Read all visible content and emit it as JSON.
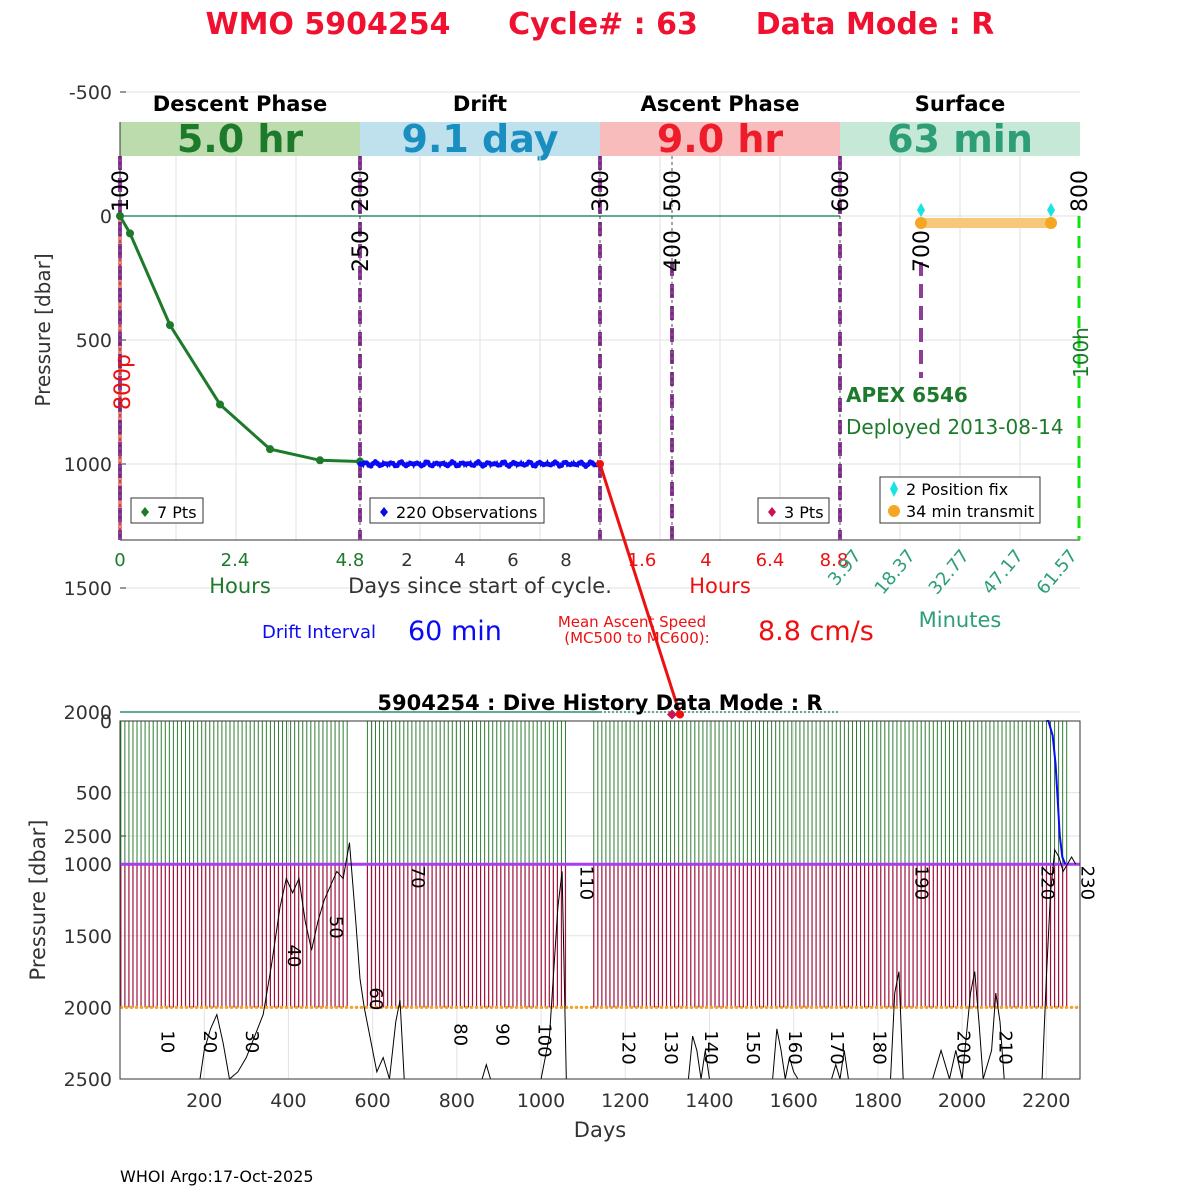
{
  "title": {
    "wmo": "WMO 5904254",
    "cycle": "Cycle# : 63",
    "mode": "Data Mode : R",
    "color": "#f0102f"
  },
  "top_chart": {
    "ylabel": "Pressure [dbar]",
    "y_ticks": [
      "-500",
      "0",
      "500",
      "1000",
      "1500",
      "2000",
      "2500"
    ],
    "phases": [
      {
        "name": "Descent Phase",
        "duration": "5.0 hr",
        "bg": "#bcdcae",
        "fg": "#1d7a2a"
      },
      {
        "name": "Drift",
        "duration": "9.1 day",
        "bg": "#bfe1ed",
        "fg": "#1a8fbf"
      },
      {
        "name": "Ascent Phase",
        "duration": "9.0 hr",
        "bg": "#f8bcbc",
        "fg": "#ee1c2a"
      },
      {
        "name": "Surface",
        "duration": "63 min",
        "bg": "#c6e8d6",
        "fg": "#2e9e78"
      }
    ],
    "mc_labels": [
      {
        "text": "100",
        "pos": 0,
        "top": true
      },
      {
        "text": "200",
        "pos": 1,
        "top": true
      },
      {
        "text": "250",
        "pos": 1,
        "top": false
      },
      {
        "text": "300",
        "pos": 2,
        "top": true
      },
      {
        "text": "500",
        "pos": 3,
        "top": true
      },
      {
        "text": "400",
        "pos": 3,
        "top": false
      },
      {
        "text": "600",
        "pos": 4,
        "top": true
      },
      {
        "text": "700",
        "pos": 5,
        "top": false
      },
      {
        "text": "800",
        "pos": 6,
        "top": true
      }
    ],
    "side_labels": {
      "left": "800p",
      "right": "100h"
    },
    "descent": {
      "axis_label": "Hours",
      "ticks": [
        "0",
        "2.4",
        "4.8"
      ],
      "legend": "7 Pts",
      "points": [
        [
          0,
          0
        ],
        [
          0.2,
          70
        ],
        [
          1.0,
          440
        ],
        [
          2.0,
          760
        ],
        [
          3.0,
          940
        ],
        [
          4.0,
          985
        ],
        [
          4.8,
          990
        ]
      ]
    },
    "drift": {
      "axis_label": "Days since start of cycle.",
      "ticks": [
        "2",
        "4",
        "6",
        "8"
      ],
      "legend": "220 Observations",
      "pressure_mean": 1000
    },
    "ascent": {
      "axis_label": "Hours",
      "ticks": [
        "1.6",
        "4",
        "6.4",
        "8.8"
      ],
      "legend": "3 Pts",
      "points": [
        [
          0,
          1000
        ],
        [
          3.0,
          2010
        ],
        [
          3.0,
          2010
        ]
      ]
    },
    "surface": {
      "axis_label": "Minutes",
      "ticks": [
        "3.97",
        "18.37",
        "32.77",
        "47.17",
        "61.57"
      ],
      "legend_fix": "2 Position fix",
      "legend_transmit": "34 min transmit",
      "float_model": "APEX 6546",
      "deployed": "Deployed 2013-08-14"
    },
    "drift_interval_label": "Drift Interval",
    "drift_interval_value": "60 min",
    "ascent_speed_label_1": "Mean Ascent Speed",
    "ascent_speed_label_2": "(MC500 to MC600):",
    "ascent_speed_value": "8.8 cm/s"
  },
  "chart_data": {
    "type": "line",
    "title": "5904254 : Dive History      Data Mode : R",
    "xlabel": "Days",
    "ylabel": "Pressure [dbar]",
    "xlim": [
      0,
      2280
    ],
    "ylim": [
      0,
      2500
    ],
    "x_ticks": [
      "200",
      "400",
      "600",
      "800",
      "1000",
      "1200",
      "1400",
      "1600",
      "1800",
      "2000",
      "2200"
    ],
    "y_ticks": [
      "0",
      "500",
      "1000",
      "1500",
      "2000",
      "2500"
    ],
    "cycle_labels": [
      {
        "text": "10",
        "day": 80,
        "p": 2300
      },
      {
        "text": "20",
        "day": 180,
        "p": 2300
      },
      {
        "text": "30",
        "day": 280,
        "p": 2300
      },
      {
        "text": "40",
        "day": 380,
        "p": 1700
      },
      {
        "text": "50",
        "day": 480,
        "p": 1500
      },
      {
        "text": "60",
        "day": 575,
        "p": 2000
      },
      {
        "text": "70",
        "day": 675,
        "p": 1150
      },
      {
        "text": "80",
        "day": 775,
        "p": 2250
      },
      {
        "text": "90",
        "day": 875,
        "p": 2250
      },
      {
        "text": "100",
        "day": 975,
        "p": 2250
      },
      {
        "text": "110",
        "day": 1075,
        "p": 1150
      },
      {
        "text": "120",
        "day": 1175,
        "p": 2300
      },
      {
        "text": "130",
        "day": 1275,
        "p": 2300
      },
      {
        "text": "140",
        "day": 1370,
        "p": 2300
      },
      {
        "text": "150",
        "day": 1470,
        "p": 2300
      },
      {
        "text": "160",
        "day": 1570,
        "p": 2300
      },
      {
        "text": "170",
        "day": 1670,
        "p": 2300
      },
      {
        "text": "180",
        "day": 1770,
        "p": 2300
      },
      {
        "text": "190",
        "day": 1870,
        "p": 1150
      },
      {
        "text": "200",
        "day": 1970,
        "p": 2300
      },
      {
        "text": "210",
        "day": 2070,
        "p": 2300
      },
      {
        "text": "220",
        "day": 2170,
        "p": 1150
      },
      {
        "text": "230",
        "day": 2265,
        "p": 1150
      }
    ],
    "drift_pressure": 1000,
    "profile_pressure": 2000,
    "bottom_depth": [
      [
        0,
        2500
      ],
      [
        190,
        2500
      ],
      [
        200,
        2300
      ],
      [
        215,
        2150
      ],
      [
        230,
        2050
      ],
      [
        245,
        2250
      ],
      [
        260,
        2500
      ],
      [
        280,
        2450
      ],
      [
        300,
        2350
      ],
      [
        320,
        2200
      ],
      [
        340,
        2050
      ],
      [
        360,
        1700
      ],
      [
        380,
        1300
      ],
      [
        395,
        1100
      ],
      [
        410,
        1200
      ],
      [
        425,
        1100
      ],
      [
        440,
        1400
      ],
      [
        455,
        1600
      ],
      [
        470,
        1400
      ],
      [
        485,
        1250
      ],
      [
        500,
        1150
      ],
      [
        515,
        1050
      ],
      [
        530,
        1100
      ],
      [
        545,
        850
      ],
      [
        560,
        1400
      ],
      [
        570,
        1800
      ],
      [
        580,
        2000
      ],
      [
        590,
        2150
      ],
      [
        600,
        2300
      ],
      [
        610,
        2450
      ],
      [
        625,
        2350
      ],
      [
        640,
        2500
      ],
      [
        655,
        2100
      ],
      [
        665,
        1950
      ],
      [
        675,
        2500
      ],
      [
        860,
        2500
      ],
      [
        870,
        2400
      ],
      [
        880,
        2500
      ],
      [
        1000,
        2500
      ],
      [
        1020,
        2200
      ],
      [
        1040,
        1300
      ],
      [
        1050,
        1050
      ],
      [
        1060,
        2500
      ],
      [
        1350,
        2500
      ],
      [
        1360,
        2200
      ],
      [
        1370,
        2300
      ],
      [
        1380,
        2500
      ],
      [
        1390,
        2300
      ],
      [
        1400,
        2500
      ],
      [
        1550,
        2500
      ],
      [
        1560,
        2150
      ],
      [
        1570,
        2300
      ],
      [
        1580,
        2500
      ],
      [
        1590,
        2350
      ],
      [
        1600,
        2450
      ],
      [
        1610,
        2500
      ],
      [
        1690,
        2500
      ],
      [
        1700,
        2400
      ],
      [
        1710,
        2500
      ],
      [
        1720,
        2300
      ],
      [
        1730,
        2500
      ],
      [
        1830,
        2500
      ],
      [
        1840,
        1900
      ],
      [
        1850,
        1750
      ],
      [
        1860,
        2500
      ],
      [
        1930,
        2500
      ],
      [
        1940,
        2400
      ],
      [
        1950,
        2300
      ],
      [
        1960,
        2400
      ],
      [
        1970,
        2500
      ],
      [
        1985,
        2300
      ],
      [
        2000,
        2500
      ],
      [
        2020,
        1900
      ],
      [
        2030,
        1750
      ],
      [
        2040,
        2100
      ],
      [
        2050,
        2500
      ],
      [
        2070,
        2300
      ],
      [
        2080,
        1900
      ],
      [
        2090,
        2100
      ],
      [
        2100,
        2500
      ],
      [
        2190,
        2500
      ],
      [
        2200,
        1800
      ],
      [
        2210,
        1200
      ],
      [
        2220,
        900
      ],
      [
        2230,
        950
      ],
      [
        2240,
        1050
      ],
      [
        2250,
        1000
      ],
      [
        2260,
        950
      ],
      [
        2270,
        1000
      ]
    ],
    "recent_profiles": [
      [
        2200,
        0
      ],
      [
        2205,
        0
      ],
      [
        2210,
        50
      ],
      [
        2215,
        100
      ],
      [
        2222,
        300
      ],
      [
        2228,
        600
      ],
      [
        2232,
        800
      ],
      [
        2238,
        950
      ],
      [
        2245,
        1000
      ]
    ]
  },
  "footer": "WHOI Argo:17-Oct-2025",
  "colors": {
    "descent": "#1d7a2a",
    "drift": "#0a0af5",
    "ascent": "#ee1010",
    "surface_fix": "#19e3e3",
    "surface_tx": "#f5a623",
    "mc_line": "#8e3d99",
    "green_dash": "#14e014",
    "ref_line": "#2e8e6e"
  }
}
